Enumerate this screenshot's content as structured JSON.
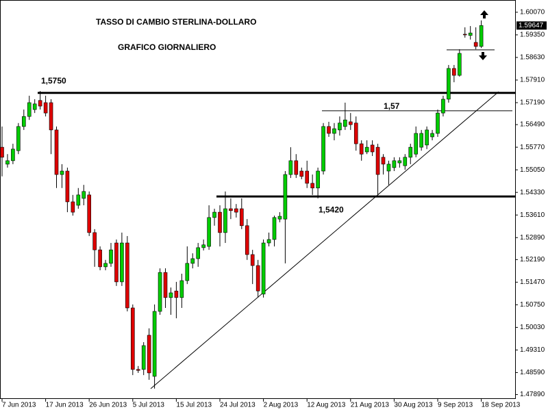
{
  "chart_data": {
    "type": "candlestick",
    "title": "TASSO DI CAMBIO STERLINA-DOLLARO",
    "subtitle": "GRAFICO GIORNALIERO",
    "categories": [
      "7 Jun 2013",
      null,
      null,
      null,
      null,
      null,
      null,
      null,
      "17 Jun 2013",
      null,
      null,
      null,
      null,
      null,
      null,
      null,
      "26 Jun 2013",
      null,
      null,
      null,
      null,
      null,
      null,
      null,
      "5 Jul 2013",
      null,
      null,
      null,
      null,
      null,
      null,
      null,
      "15 Jul 2013",
      null,
      null,
      null,
      null,
      null,
      null,
      null,
      "24 Jul 2013",
      null,
      null,
      null,
      null,
      null,
      null,
      null,
      "2 Aug 2013",
      null,
      null,
      null,
      null,
      null,
      null,
      null,
      "12 Aug 2013",
      null,
      null,
      null,
      null,
      null,
      null,
      null,
      "21 Aug 2013",
      null,
      null,
      null,
      null,
      null,
      null,
      null,
      "30 Aug 2013",
      null,
      null,
      null,
      null,
      null,
      null,
      null,
      "9 Sep 2013",
      null,
      null,
      null,
      null,
      null,
      null,
      null,
      "18 Sep 2013"
    ],
    "open": [
      1.5577,
      1.5523,
      1.5534,
      1.5566,
      1.5643,
      1.5675,
      1.5697,
      1.5726,
      1.5719,
      1.5719,
      1.5632,
      1.549,
      1.5501,
      1.5403,
      1.5392,
      1.5414,
      1.5425,
      1.5305,
      1.525,
      1.5196,
      1.5207,
      1.5272,
      1.5148,
      1.5272,
      1.5065,
      1.4869,
      1.4869,
      1.4978,
      1.4847,
      1.5054,
      1.5178,
      1.5098,
      1.5119,
      1.5098,
      1.5152,
      1.5207,
      1.5222,
      1.5257,
      1.5261,
      1.5353,
      1.537,
      1.5305,
      1.5381,
      1.5381,
      1.5381,
      1.5327,
      1.5235,
      1.52,
      1.5109,
      1.5272,
      1.5283,
      1.5348,
      1.5348,
      1.549,
      1.5534,
      1.5501,
      1.5501,
      1.5462,
      1.5447,
      1.5501,
      1.5643,
      1.5621,
      1.5632,
      1.5643,
      1.5658,
      1.5654,
      1.5588,
      1.5562,
      1.5584,
      1.5577,
      1.5545,
      1.5501,
      1.5512,
      1.5527,
      1.5518,
      1.5545,
      1.5555,
      1.5577,
      1.5584,
      1.561,
      1.5621,
      1.5686,
      1.573,
      1.5828,
      1.5806,
      1.5937,
      1.5933,
      1.5911,
      1.5898
    ],
    "high": [
      1.5643,
      1.5555,
      1.5588,
      1.5654,
      1.5697,
      1.5741,
      1.573,
      1.5756,
      1.5741,
      1.573,
      1.5643,
      1.5523,
      1.5512,
      1.5425,
      1.5447,
      1.5457,
      1.5436,
      1.5316,
      1.5261,
      1.5218,
      1.5272,
      1.5283,
      1.5305,
      1.5294,
      1.5076,
      1.488,
      1.4956,
      1.5,
      1.5076,
      1.5191,
      1.5191,
      1.513,
      1.5148,
      1.5174,
      1.5261,
      1.5239,
      1.5272,
      1.5283,
      1.5392,
      1.5381,
      1.5392,
      1.5436,
      1.5414,
      1.5396,
      1.5414,
      1.5348,
      1.525,
      1.5218,
      1.5283,
      1.5305,
      1.5359,
      1.537,
      1.5501,
      1.5577,
      1.5555,
      1.5512,
      1.5534,
      1.549,
      1.5512,
      1.5654,
      1.5658,
      1.5654,
      1.5675,
      1.5719,
      1.5686,
      1.5675,
      1.5599,
      1.5599,
      1.5599,
      1.5588,
      1.5555,
      1.5534,
      1.5545,
      1.5545,
      1.5555,
      1.5588,
      1.5643,
      1.5632,
      1.5643,
      1.5632,
      1.5697,
      1.5741,
      1.5839,
      1.5839,
      1.5889,
      1.5959,
      1.5963,
      1.5959,
      1.5981
    ],
    "low": [
      1.5484,
      1.5512,
      1.5523,
      1.5555,
      1.5632,
      1.5664,
      1.5686,
      1.5697,
      1.5675,
      1.5555,
      1.5447,
      1.5447,
      1.537,
      1.5359,
      1.5381,
      1.5392,
      1.5294,
      1.5196,
      1.5185,
      1.5185,
      1.5196,
      1.5135,
      1.5135,
      1.5054,
      1.4851,
      1.4858,
      1.4851,
      1.4836,
      1.4808,
      1.5043,
      1.5065,
      1.5043,
      1.5032,
      1.5065,
      1.5141,
      1.5191,
      1.5196,
      1.5248,
      1.525,
      1.5327,
      1.5261,
      1.5272,
      1.5348,
      1.5353,
      1.5316,
      1.5218,
      1.5141,
      1.5098,
      1.5098,
      1.5261,
      1.5261,
      1.5338,
      1.5207,
      1.5479,
      1.5479,
      1.5475,
      1.5447,
      1.5425,
      1.5414,
      1.549,
      1.561,
      1.5599,
      1.5614,
      1.5632,
      1.5632,
      1.5566,
      1.5534,
      1.5555,
      1.5549,
      1.5425,
      1.549,
      1.5457,
      1.5501,
      1.5512,
      1.5505,
      1.5523,
      1.5545,
      1.5566,
      1.5571,
      1.5599,
      1.561,
      1.5675,
      1.5719,
      1.5784,
      1.5802,
      1.5926,
      1.592,
      1.5889,
      1.5893
    ],
    "close": [
      1.5545,
      1.5534,
      1.5571,
      1.5643,
      1.5675,
      1.5719,
      1.5715,
      1.5708,
      1.5686,
      1.5632,
      1.549,
      1.5501,
      1.5403,
      1.537,
      1.5425,
      1.5436,
      1.5305,
      1.525,
      1.5196,
      1.5207,
      1.525,
      1.5148,
      1.5272,
      1.5065,
      1.4869,
      1.4866,
      1.4945,
      1.4858,
      1.5054,
      1.5178,
      1.5098,
      1.5113,
      1.5098,
      1.5152,
      1.5207,
      1.5222,
      1.5257,
      1.5266,
      1.5353,
      1.537,
      1.5305,
      1.5381,
      1.5375,
      1.537,
      1.5327,
      1.5235,
      1.52,
      1.5119,
      1.5272,
      1.5283,
      1.5353,
      1.5357,
      1.549,
      1.5534,
      1.549,
      1.5484,
      1.5462,
      1.5447,
      1.5501,
      1.5643,
      1.5621,
      1.5636,
      1.5654,
      1.5664,
      1.5649,
      1.5588,
      1.5555,
      1.5577,
      1.5562,
      1.549,
      1.5523,
      1.5523,
      1.5534,
      1.5534,
      1.5545,
      1.5577,
      1.5621,
      1.5621,
      1.5632,
      1.5621,
      1.5686,
      1.573,
      1.5828,
      1.5806,
      1.5876,
      1.5935,
      1.5941,
      1.5898,
      1.59647
    ],
    "up_color": "#00cc00",
    "down_color": "#dd0000",
    "ylim": [
      1.4775,
      1.6046
    ],
    "yticks": [
      {
        "value": 1.6007,
        "label": "1.60070"
      },
      {
        "value": 1.5935,
        "label": "1.59350"
      },
      {
        "value": 1.5863,
        "label": "1.58630"
      },
      {
        "value": 1.5791,
        "label": "1.57910"
      },
      {
        "value": 1.5719,
        "label": "1.57190"
      },
      {
        "value": 1.5649,
        "label": "1.56490"
      },
      {
        "value": 1.5577,
        "label": "1.55770"
      },
      {
        "value": 1.5505,
        "label": "1.55050"
      },
      {
        "value": 1.5433,
        "label": "1.54330"
      },
      {
        "value": 1.5361,
        "label": "1.53610"
      },
      {
        "value": 1.5289,
        "label": "1.52890"
      },
      {
        "value": 1.5219,
        "label": "1.52190"
      },
      {
        "value": 1.5147,
        "label": "1.51470"
      },
      {
        "value": 1.5075,
        "label": "1.50750"
      },
      {
        "value": 1.5003,
        "label": "1.50030"
      },
      {
        "value": 1.4931,
        "label": "1.49310"
      },
      {
        "value": 1.4859,
        "label": "1.48590"
      },
      {
        "value": 1.4789,
        "label": "1.47890"
      }
    ],
    "levels": [
      {
        "value": 1.575,
        "label": "1,5750"
      },
      {
        "value": 1.5693,
        "label": "1,57"
      },
      {
        "value": 1.542,
        "label": "1,5420"
      },
      {
        "value": 1.5887
      }
    ]
  }
}
